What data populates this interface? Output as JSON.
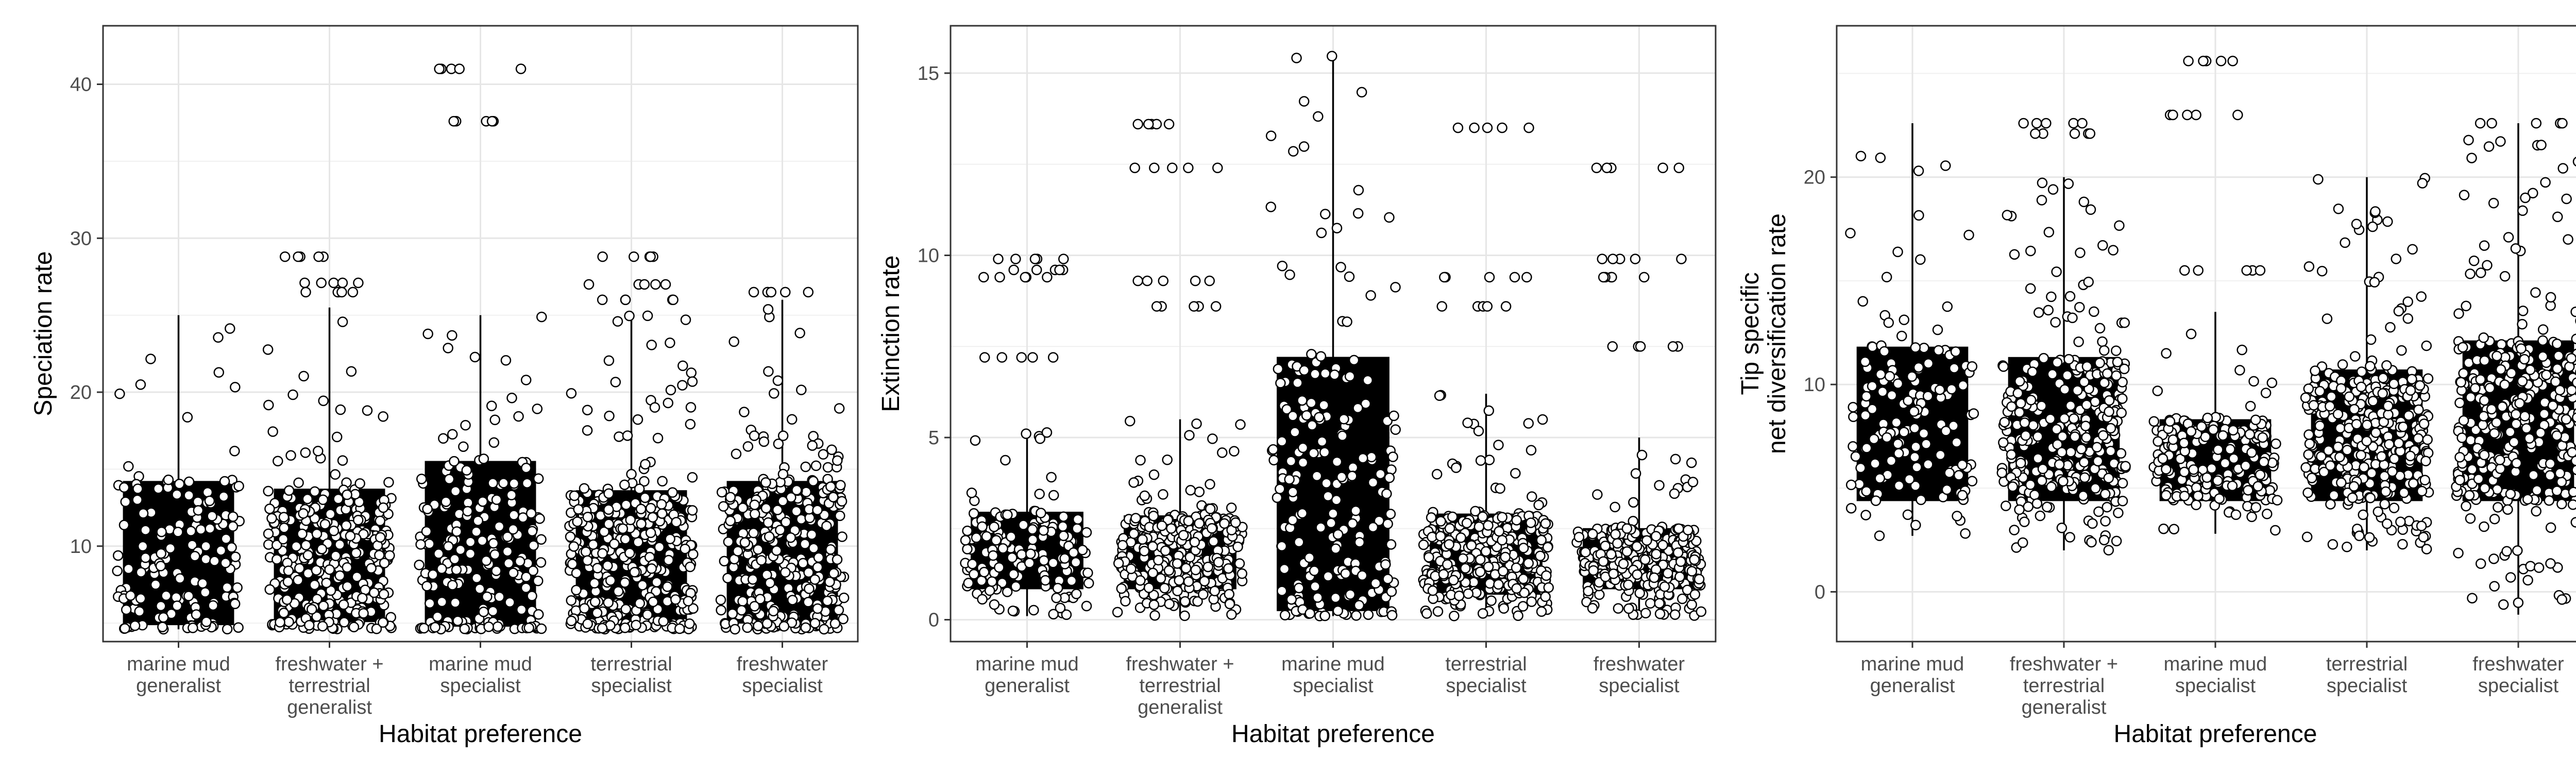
{
  "chart_data": [
    {
      "type": "box",
      "xlabel": "Habitat preference",
      "ylabel": [
        "Speciation rate"
      ],
      "ylim": [
        3.8,
        43.8
      ],
      "yticks": [
        10,
        20,
        30,
        40
      ],
      "categories": [
        [
          "marine mud",
          "generalist"
        ],
        [
          "freshwater +",
          "terrestrial",
          "generalist"
        ],
        [
          "marine mud",
          "specialist"
        ],
        [
          "terrestrial",
          "specialist"
        ],
        [
          "freshwater",
          "specialist"
        ]
      ],
      "grid": true,
      "boxes": [
        {
          "lower_whisker": 4.6,
          "q1": 4.9,
          "q3": 14.2,
          "upper_whisker": 25.0,
          "points": 150
        },
        {
          "lower_whisker": 4.6,
          "q1": 5.1,
          "q3": 13.7,
          "upper_whisker": 25.5,
          "points": 320
        },
        {
          "lower_whisker": 4.6,
          "q1": 4.8,
          "q3": 15.5,
          "upper_whisker": 25.0,
          "points": 200
        },
        {
          "lower_whisker": 4.6,
          "q1": 5.0,
          "q3": 13.6,
          "upper_whisker": 25.0,
          "points": 360
        },
        {
          "lower_whisker": 4.6,
          "q1": 5.0,
          "q3": 14.2,
          "upper_whisker": 26.0,
          "points": 340
        }
      ],
      "outliers": [
        {
          "category": 2,
          "values": [
            41.0,
            37.6
          ]
        },
        {
          "category": 1,
          "values": [
            28.8,
            27.1,
            26.5
          ]
        },
        {
          "category": 3,
          "values": [
            28.8,
            27.0,
            26.0
          ]
        },
        {
          "category": 4,
          "values": [
            26.5
          ]
        }
      ]
    },
    {
      "type": "box",
      "xlabel": "Habitat preference",
      "ylabel": [
        "Extinction rate"
      ],
      "ylim": [
        -0.6,
        16.3
      ],
      "yticks": [
        0,
        5,
        10,
        15
      ],
      "categories": [
        [
          "marine mud",
          "generalist"
        ],
        [
          "freshwater +",
          "terrestrial",
          "generalist"
        ],
        [
          "marine mud",
          "specialist"
        ],
        [
          "terrestrial",
          "specialist"
        ],
        [
          "freshwater",
          "specialist"
        ]
      ],
      "grid": true,
      "boxes": [
        {
          "lower_whisker": 0.1,
          "q1": 0.85,
          "q3": 2.95,
          "upper_whisker": 5.2,
          "points": 150
        },
        {
          "lower_whisker": 0.1,
          "q1": 0.85,
          "q3": 2.85,
          "upper_whisker": 5.5,
          "points": 320
        },
        {
          "lower_whisker": 0.1,
          "q1": 0.25,
          "q3": 7.2,
          "upper_whisker": 15.5,
          "points": 200
        },
        {
          "lower_whisker": 0.1,
          "q1": 0.7,
          "q3": 2.9,
          "upper_whisker": 6.2,
          "points": 360
        },
        {
          "lower_whisker": 0.1,
          "q1": 0.85,
          "q3": 2.5,
          "upper_whisker": 5.0,
          "points": 340
        }
      ],
      "outliers": [
        {
          "category": 0,
          "values": [
            9.9,
            9.6,
            9.4,
            7.2
          ]
        },
        {
          "category": 1,
          "values": [
            13.6,
            12.4,
            9.3,
            8.6
          ]
        },
        {
          "category": 3,
          "values": [
            13.5,
            9.4,
            8.6
          ]
        },
        {
          "category": 4,
          "values": [
            12.4,
            9.9,
            9.4,
            7.5
          ]
        }
      ]
    },
    {
      "type": "box",
      "xlabel": "Habitat preference",
      "ylabel": [
        "Tip specific",
        "net diversification rate"
      ],
      "ylim": [
        -2.4,
        27.3
      ],
      "yticks": [
        0,
        10,
        20
      ],
      "categories": [
        [
          "marine mud",
          "generalist"
        ],
        [
          "freshwater +",
          "terrestrial",
          "generalist"
        ],
        [
          "marine mud",
          "specialist"
        ],
        [
          "terrestrial",
          "specialist"
        ],
        [
          "freshwater",
          "specialist"
        ]
      ],
      "grid": true,
      "boxes": [
        {
          "lower_whisker": 2.7,
          "q1": 4.4,
          "q3": 11.8,
          "upper_whisker": 22.6,
          "points": 150
        },
        {
          "lower_whisker": 2.0,
          "q1": 4.4,
          "q3": 11.3,
          "upper_whisker": 20.0,
          "points": 320
        },
        {
          "lower_whisker": 2.8,
          "q1": 4.4,
          "q3": 8.3,
          "upper_whisker": 13.5,
          "points": 200
        },
        {
          "lower_whisker": 2.0,
          "q1": 4.4,
          "q3": 10.7,
          "upper_whisker": 20.0,
          "points": 360
        },
        {
          "lower_whisker": -1.1,
          "q1": 4.4,
          "q3": 12.1,
          "upper_whisker": 22.6,
          "points": 340
        }
      ],
      "outliers": [
        {
          "category": 1,
          "values": [
            22.6,
            22.1
          ]
        },
        {
          "category": 2,
          "values": [
            25.6,
            23.0,
            15.5
          ]
        },
        {
          "category": 4,
          "values": [
            22.6
          ]
        }
      ]
    }
  ]
}
